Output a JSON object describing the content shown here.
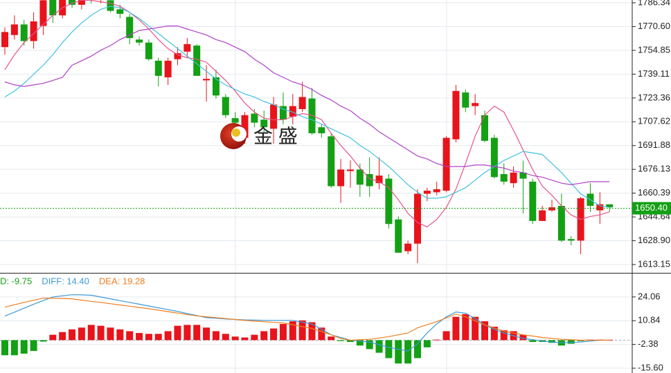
{
  "chart_data": [
    {
      "type": "candlestick",
      "open": [
        1757,
        1765,
        1772,
        1761,
        1771,
        1789,
        1778,
        1790,
        1785,
        1792,
        1789,
        1788,
        1782,
        1777,
        1762,
        1760,
        1748,
        1737,
        1749,
        1754,
        1758,
        1735,
        1737,
        1724,
        1710,
        1697,
        1713,
        1709,
        1703,
        1718,
        1711,
        1716,
        1723,
        1704,
        1698,
        1665,
        1675,
        1676,
        1673,
        1667,
        1670,
        1643,
        1622,
        1627,
        1660,
        1661,
        1662,
        1696,
        1727,
        1718,
        1712,
        1697,
        1673,
        1667,
        1674,
        1668,
        1642,
        1649,
        1652,
        1630,
        1629,
        1660,
        1649,
        1653
      ],
      "high": [
        1770,
        1778,
        1775,
        1780,
        1792,
        1792,
        1795,
        1794,
        1796,
        1797,
        1795,
        1790,
        1785,
        1779,
        1764,
        1762,
        1750,
        1750,
        1757,
        1763,
        1759,
        1745,
        1742,
        1726,
        1714,
        1714,
        1716,
        1715,
        1724,
        1727,
        1726,
        1734,
        1730,
        1706,
        1700,
        1683,
        1682,
        1680,
        1684,
        1684,
        1673,
        1645,
        1629,
        1663,
        1664,
        1668,
        1698,
        1732,
        1729,
        1726,
        1715,
        1699,
        1680,
        1678,
        1682,
        1670,
        1652,
        1656,
        1660,
        1632,
        1658,
        1667,
        1661,
        1653
      ],
      "low": [
        1752,
        1762,
        1758,
        1756,
        1765,
        1773,
        1776,
        1783,
        1782,
        1786,
        1786,
        1780,
        1776,
        1759,
        1758,
        1748,
        1731,
        1732,
        1745,
        1750,
        1738,
        1721,
        1723,
        1710,
        1702,
        1693,
        1704,
        1700,
        1693,
        1706,
        1706,
        1714,
        1699,
        1697,
        1664,
        1654,
        1664,
        1658,
        1658,
        1663,
        1637,
        1621,
        1620,
        1614,
        1655,
        1659,
        1661,
        1694,
        1714,
        1712,
        1694,
        1670,
        1666,
        1664,
        1647,
        1640,
        1642,
        1648,
        1628,
        1626,
        1620,
        1648,
        1640,
        1648
      ],
      "close": [
        1767,
        1772,
        1761,
        1774,
        1788,
        1778,
        1790,
        1785,
        1790,
        1789,
        1790,
        1781,
        1779,
        1763,
        1760,
        1749,
        1738,
        1748,
        1753,
        1759,
        1738,
        1736,
        1725,
        1712,
        1707,
        1712,
        1707,
        1704,
        1719,
        1709,
        1718,
        1724,
        1700,
        1700,
        1665,
        1676,
        1676,
        1666,
        1665,
        1672,
        1640,
        1621,
        1627,
        1660,
        1662,
        1663,
        1697,
        1728,
        1717,
        1720,
        1695,
        1671,
        1668,
        1674,
        1670,
        1642,
        1649,
        1651,
        1629,
        1629,
        1657,
        1652,
        1653,
        1651
      ],
      "up_color": "#e8141b",
      "down_color": "#14a014",
      "lines": [
        {
          "color": "#e8508c",
          "values": [
            1742,
            1752,
            1760,
            1766,
            1772,
            1778,
            1783,
            1786,
            1788,
            1788,
            1787,
            1786,
            1784,
            1780,
            1775,
            1769,
            1762,
            1756,
            1752,
            1750,
            1749,
            1747,
            1741,
            1735,
            1728,
            1720,
            1714,
            1710,
            1709,
            1709,
            1711,
            1713,
            1712,
            1709,
            1700,
            1692,
            1685,
            1677,
            1670,
            1668,
            1664,
            1656,
            1647,
            1641,
            1638,
            1643,
            1651,
            1663,
            1680,
            1698,
            1712,
            1718,
            1714,
            1702,
            1689,
            1676,
            1665,
            1659,
            1652,
            1646,
            1643,
            1645,
            1646,
            1648
          ]
        },
        {
          "color": "#40c0e0",
          "values": [
            1724,
            1728,
            1733,
            1739,
            1745,
            1752,
            1760,
            1767,
            1773,
            1778,
            1782,
            1784,
            1783,
            1780,
            1776,
            1771,
            1766,
            1761,
            1756,
            1751,
            1746,
            1741,
            1736,
            1732,
            1729,
            1726,
            1724,
            1721,
            1719,
            1716,
            1714,
            1711,
            1709,
            1706,
            1703,
            1700,
            1697,
            1692,
            1688,
            1683,
            1678,
            1672,
            1666,
            1661,
            1657,
            1657,
            1658,
            1661,
            1664,
            1669,
            1674,
            1678,
            1682,
            1685,
            1688,
            1687,
            1686,
            1680,
            1674,
            1667,
            1660,
            1656,
            1652,
            1651
          ]
        },
        {
          "color": "#b040c8",
          "values": [
            1734,
            1732,
            1731,
            1732,
            1733,
            1735,
            1737,
            1745,
            1748,
            1751,
            1755,
            1758,
            1762,
            1765,
            1768,
            1769,
            1770,
            1771,
            1771,
            1769,
            1767,
            1765,
            1762,
            1760,
            1757,
            1754,
            1749,
            1745,
            1740,
            1737,
            1734,
            1732,
            1729,
            1725,
            1722,
            1718,
            1715,
            1710,
            1706,
            1701,
            1697,
            1693,
            1689,
            1685,
            1683,
            1680,
            1678,
            1678,
            1678,
            1679,
            1679,
            1678,
            1677,
            1675,
            1674,
            1672,
            1671,
            1669,
            1667,
            1666,
            1667,
            1668,
            1668,
            1668
          ]
        }
      ],
      "ylim": [
        1607.67,
        1788.17
      ],
      "yticks": [
        1786.34,
        {
          "value": 1770.6,
          "label": "1770.60"
        },
        1754.85,
        1739.11,
        1723.36,
        1707.62,
        1691.88,
        1676.13,
        1660.39,
        1644.64,
        {
          "value": 1628.9,
          "label": "1628.90"
        },
        1613.15
      ],
      "grid": true,
      "last_price": {
        "value": 1650.4,
        "label": "1650.40"
      },
      "watermark": "金 盛"
    },
    {
      "type": "macd",
      "legend": [
        {
          "text": "D: -9.75",
          "color": "#14a014"
        },
        {
          "text": "DIFF: 14.40",
          "color": "#3a9ad9"
        },
        {
          "text": "DEA: 19.28",
          "color": "#f07c1e"
        }
      ],
      "values": [
        -8.4,
        -8.4,
        -7.5,
        -6,
        -0.8,
        3,
        4.5,
        6,
        7,
        8.5,
        8,
        7,
        6,
        5,
        4,
        3.5,
        3.5,
        5,
        8,
        8.5,
        8.5,
        7,
        5,
        3.5,
        2,
        1.5,
        3,
        5,
        6.5,
        9,
        10.5,
        11,
        10,
        7,
        2,
        -0.5,
        -1,
        -3,
        -5,
        -7,
        -10,
        -13,
        -13,
        -10,
        -4,
        0.3,
        5,
        13,
        14.5,
        13,
        10.5,
        7.5,
        5.5,
        5,
        3,
        -1,
        -1,
        -1.5,
        -3,
        -2,
        -0.5,
        0.3,
        0.3,
        0.2
      ],
      "up_color": "#e8141b",
      "down_color": "#14a014",
      "lines": [
        {
          "color": "#3a9ad9",
          "values": [
            13.4,
            15.6,
            17.8,
            20,
            22,
            24,
            24.7,
            25.3,
            25.2,
            25,
            24,
            23,
            22,
            21,
            20,
            19,
            18,
            17,
            16,
            14.8,
            13.7,
            12.5,
            12.2,
            11.8,
            11.5,
            11.3,
            11.2,
            11,
            11,
            11,
            11,
            10,
            9,
            6,
            3,
            1.5,
            0,
            -0.5,
            -1,
            -2.5,
            -4,
            -5,
            -6,
            -2,
            4,
            9,
            13,
            15.7,
            15,
            12,
            8.5,
            6,
            4,
            2.5,
            1,
            0.3,
            -0.5,
            -1,
            -1.5,
            -1.3,
            -1,
            -0.5,
            0,
            0
          ]
        },
        {
          "color": "#f07c1e",
          "values": [
            18.4,
            19.7,
            21,
            22.2,
            23.4,
            23.3,
            23.2,
            23,
            22.3,
            21.6,
            21,
            20.3,
            19.6,
            18.9,
            18.2,
            17.5,
            16.7,
            15.9,
            15.1,
            14.3,
            13.5,
            13,
            12.5,
            12,
            11.5,
            11,
            10.6,
            10.3,
            9.9,
            9.6,
            8.6,
            7.5,
            6.5,
            4.8,
            3,
            1,
            0,
            0.2,
            0.5,
            1.2,
            2,
            3,
            4,
            6.9,
            8.6,
            10.3,
            12.4,
            14.5,
            13,
            10.8,
            8.5,
            6.8,
            5,
            4,
            3,
            2.3,
            1.5,
            1,
            0.5,
            0.2,
            0,
            0,
            0,
            0
          ]
        }
      ],
      "ylim": [
        -18.28,
        36.7
      ],
      "yticks": [
        24.06,
        10.84,
        -2.38,
        {
          "value": -15.6,
          "label": "-15.60"
        }
      ],
      "grid": true
    }
  ]
}
